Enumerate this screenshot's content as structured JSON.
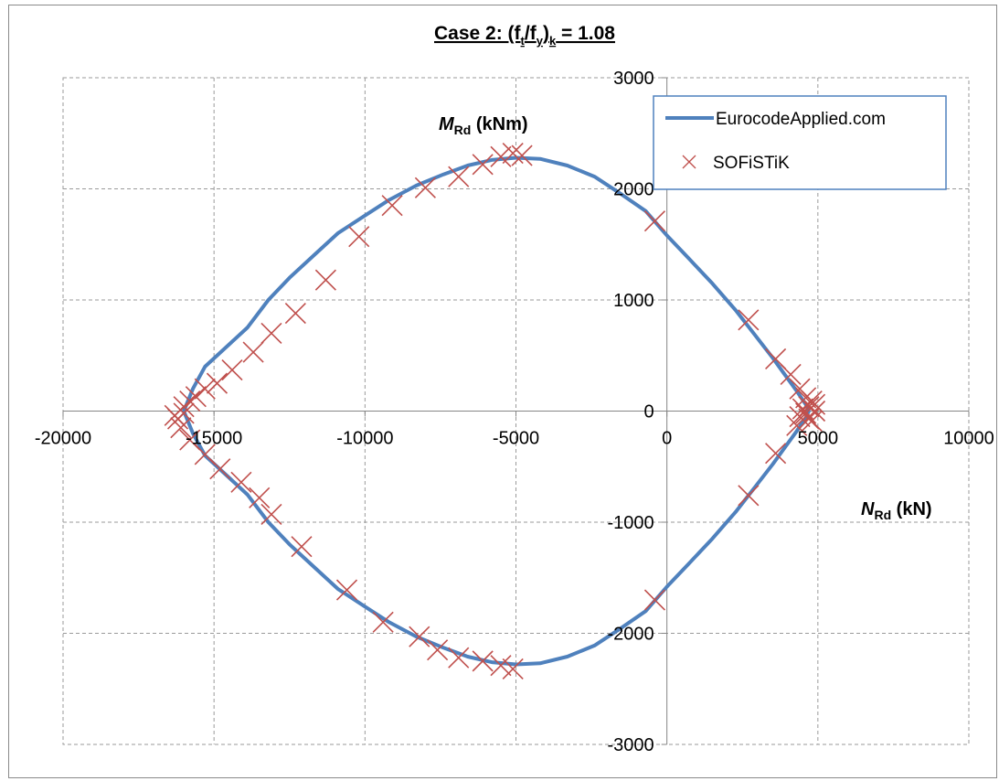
{
  "chart_data": {
    "type": "scatter",
    "title": {
      "prefix": "Case 2: (f",
      "sub_t": "t",
      "slash": "/f",
      "sub_y": "y",
      "close": ")",
      "sub_k": "k",
      "suffix": " = 1.08"
    },
    "ylabel": {
      "main": "M",
      "sub": "Rd",
      "unit": " (kNm)"
    },
    "xlabel": {
      "main": "N",
      "sub": "Rd",
      "unit": " (kN)"
    },
    "xlim": [
      -20000,
      10000
    ],
    "ylim": [
      -3000,
      3000
    ],
    "x_ticks": [
      -20000,
      -15000,
      -10000,
      -5000,
      0,
      5000,
      10000
    ],
    "x_tick_labels": [
      "-20000",
      "-15000",
      "-10000",
      "-5000",
      "0",
      "5000",
      "10000"
    ],
    "y_ticks": [
      -3000,
      -2000,
      -1000,
      0,
      1000,
      2000,
      3000
    ],
    "y_tick_labels": [
      "-3000",
      "-2000",
      "-1000",
      "0",
      "1000",
      "2000",
      "3000"
    ],
    "grid": true,
    "legend_position": "top-right",
    "series": [
      {
        "name": "EurocodeApplied.com",
        "kind": "line",
        "color": "#4f81bd",
        "points": [
          [
            -16000,
            0
          ],
          [
            -15700,
            200
          ],
          [
            -15300,
            400
          ],
          [
            -14500,
            600
          ],
          [
            -13900,
            750
          ],
          [
            -13200,
            1000
          ],
          [
            -12500,
            1200
          ],
          [
            -11700,
            1400
          ],
          [
            -10900,
            1600
          ],
          [
            -10000,
            1760
          ],
          [
            -9200,
            1900
          ],
          [
            -8300,
            2030
          ],
          [
            -7400,
            2130
          ],
          [
            -6600,
            2210
          ],
          [
            -5800,
            2260
          ],
          [
            -5000,
            2280
          ],
          [
            -4200,
            2270
          ],
          [
            -3300,
            2210
          ],
          [
            -2400,
            2110
          ],
          [
            -1500,
            1950
          ],
          [
            -700,
            1800
          ],
          [
            0,
            1580
          ],
          [
            700,
            1380
          ],
          [
            1500,
            1150
          ],
          [
            2300,
            900
          ],
          [
            2900,
            690
          ],
          [
            3500,
            480
          ],
          [
            3900,
            330
          ],
          [
            4300,
            180
          ],
          [
            4600,
            60
          ],
          [
            4700,
            0
          ],
          [
            4600,
            -60
          ],
          [
            4300,
            -180
          ],
          [
            3900,
            -330
          ],
          [
            3500,
            -480
          ],
          [
            2900,
            -690
          ],
          [
            2300,
            -900
          ],
          [
            1500,
            -1150
          ],
          [
            700,
            -1380
          ],
          [
            0,
            -1580
          ],
          [
            -700,
            -1800
          ],
          [
            -1500,
            -1950
          ],
          [
            -2400,
            -2110
          ],
          [
            -3300,
            -2210
          ],
          [
            -4200,
            -2270
          ],
          [
            -5000,
            -2280
          ],
          [
            -5800,
            -2260
          ],
          [
            -6600,
            -2210
          ],
          [
            -7400,
            -2130
          ],
          [
            -8300,
            -2030
          ],
          [
            -9200,
            -1900
          ],
          [
            -10000,
            -1760
          ],
          [
            -10900,
            -1600
          ],
          [
            -11700,
            -1400
          ],
          [
            -12500,
            -1200
          ],
          [
            -13200,
            -1000
          ],
          [
            -13900,
            -750
          ],
          [
            -14500,
            -600
          ],
          [
            -15300,
            -400
          ],
          [
            -15700,
            -200
          ],
          [
            -16000,
            0
          ]
        ]
      },
      {
        "name": "SOFiSTiK",
        "kind": "marker-x",
        "color": "#c0504d",
        "points": [
          [
            -16000,
            40
          ],
          [
            -15800,
            90
          ],
          [
            -15600,
            130
          ],
          [
            -15300,
            200
          ],
          [
            -14900,
            250
          ],
          [
            -14400,
            370
          ],
          [
            -13700,
            530
          ],
          [
            -13100,
            700
          ],
          [
            -12300,
            880
          ],
          [
            -11300,
            1180
          ],
          [
            -10200,
            1570
          ],
          [
            -9100,
            1850
          ],
          [
            -8000,
            2010
          ],
          [
            -6900,
            2110
          ],
          [
            -6100,
            2220
          ],
          [
            -5500,
            2290
          ],
          [
            -5100,
            2320
          ],
          [
            -4800,
            2300
          ],
          [
            -400,
            1710
          ],
          [
            2700,
            820
          ],
          [
            3600,
            470
          ],
          [
            4100,
            330
          ],
          [
            4400,
            200
          ],
          [
            4600,
            120
          ],
          [
            4800,
            90
          ],
          [
            4900,
            60
          ],
          [
            4700,
            40
          ],
          [
            4500,
            20
          ],
          [
            4900,
            0
          ],
          [
            4600,
            -20
          ],
          [
            4400,
            -50
          ],
          [
            4700,
            -70
          ],
          [
            4800,
            -90
          ],
          [
            4300,
            -130
          ],
          [
            3600,
            -380
          ],
          [
            2700,
            -760
          ],
          [
            -400,
            -1700
          ],
          [
            -5100,
            -2320
          ],
          [
            -5500,
            -2290
          ],
          [
            -6100,
            -2250
          ],
          [
            -6900,
            -2220
          ],
          [
            -7600,
            -2150
          ],
          [
            -8200,
            -2030
          ],
          [
            -9400,
            -1900
          ],
          [
            -10600,
            -1610
          ],
          [
            -12100,
            -1220
          ],
          [
            -13100,
            -930
          ],
          [
            -13500,
            -780
          ],
          [
            -14100,
            -640
          ],
          [
            -14800,
            -520
          ],
          [
            -15300,
            -390
          ],
          [
            -15800,
            -260
          ],
          [
            -16100,
            -150
          ],
          [
            -16200,
            -70
          ],
          [
            -16300,
            -40
          ],
          [
            -16000,
            -20
          ]
        ]
      }
    ]
  }
}
